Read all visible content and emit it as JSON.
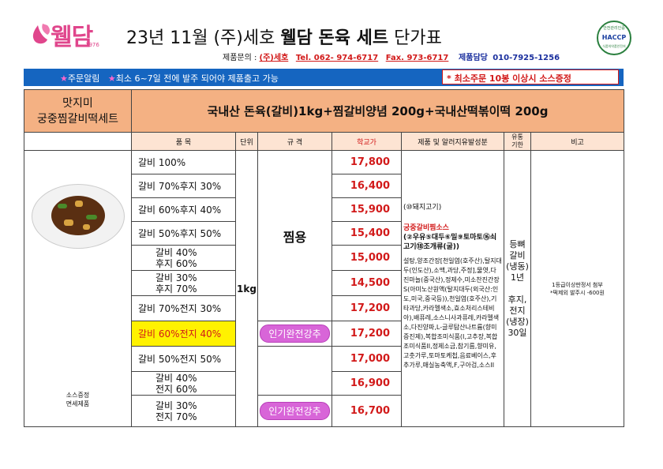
{
  "header": {
    "logo_text": "웰담",
    "logo_sub": "1976",
    "title_prefix": "23년 11월 (주)세호 ",
    "title_bold": "웰담 돈육 세트",
    "title_suffix": " 단가표",
    "contact_label": "제품문의 : ",
    "contact_company": "(주)세호",
    "contact_tel": "Tel. 062- 974-6717",
    "contact_fax": "Fax. 973-6717",
    "contact_manager": "제품담당",
    "contact_mobile": "010-7925-1256",
    "haccp_top": "안전관리인증",
    "haccp_label": "HACCP",
    "haccp_bot": "식품의약품안전처"
  },
  "notice": {
    "star1": "★",
    "text1": "주문알림",
    "star2": "★",
    "text2": "최소 6~7일 전에 발주 되어야 제품출고 가능",
    "right": "* 최소주문 10봉 이상시 소스증정"
  },
  "table": {
    "set_name_line1": "맛지미",
    "set_name_line2": "궁중찜갈비떡세트",
    "composition": "국내산 돈육(갈비)1kg+찜갈비양념 200g+국내산떡볶이떡 200g",
    "headers": {
      "item": "품   목",
      "unit": "단위",
      "spec": "규   격",
      "price": "학교가",
      "ingredients": "제품 및 알러지유발성분",
      "shelf": "유통\n기한",
      "note": "비고"
    },
    "rows": [
      {
        "l1": "갈비 100%",
        "l2": "",
        "price": "17,800",
        "badge": "",
        "highlight": false
      },
      {
        "l1": "갈비 70%후지 30%",
        "l2": "",
        "price": "16,400",
        "badge": "",
        "highlight": false
      },
      {
        "l1": "갈비 60%후지 40%",
        "l2": "",
        "price": "15,900",
        "badge": "",
        "highlight": false
      },
      {
        "l1": "갈비 50%후지 50%",
        "l2": "",
        "price": "15,400",
        "badge": "",
        "highlight": false
      },
      {
        "l1": "갈비 40%",
        "l2": "후지 60%",
        "price": "15,000",
        "badge": "",
        "highlight": false
      },
      {
        "l1": "갈비 30%",
        "l2": "후지 70%",
        "price": "14,500",
        "badge": "",
        "highlight": false
      },
      {
        "l1": "갈비 70%전지 30%",
        "l2": "",
        "price": "17,200",
        "badge": "",
        "highlight": false
      },
      {
        "l1": "갈비 60%전지 40%",
        "l2": "",
        "price": "17,200",
        "badge": "인기완전강추",
        "highlight": true
      },
      {
        "l1": "갈비 50%전지 50%",
        "l2": "",
        "price": "17,000",
        "badge": "",
        "highlight": false
      },
      {
        "l1": "갈비 40%",
        "l2": "전지 60%",
        "price": "16,900",
        "badge": "",
        "highlight": false
      },
      {
        "l1": "갈비 30%",
        "l2": "전지 70%",
        "price": "16,700",
        "badge": "인기완전강추",
        "highlight": false
      }
    ],
    "unit": "1kg",
    "spec": "찜용",
    "ingredients": {
      "pork": "(⑩돼지고기)",
      "sauce_title": "궁중갈비찜소스",
      "allergens": "(②우유⑤대두⑥밀⑨토마토⑯쇠고기⑱조개류(굴))",
      "list": "설탕,양조간장[천일염(호주산),탈지대두(인도산),소맥,과당,주정],물엿,다진마늘(중국산),정제수,미소찬진간장S(아미노산원액(탈지대두(외국산:인도,미국,중국등)),천일염(호주산),기타과당,카라멜색소,효소처리스테비아),배퓨레,소스니사과퓨레,카라멜색소,다진양파,L-글루탐산나트륨(향미증진제),복합조미식품(I,고추장,복합조미식품II,정제소금,참기름,향미유,고춧가루,토마토케첩,음료베이스,후추가루,매실농축액,F,구아검,소스II"
    },
    "shelf": {
      "l1": "등뼈",
      "l2": "갈비",
      "l3": "(냉동)",
      "l4": "1년",
      "l5": "후지,",
      "l6": "전지",
      "l7": "(냉장)",
      "l8": "30일"
    },
    "note_l1": "1등급이상판정서 첨부",
    "note_l2": "*떡제외 발주시 -600원",
    "photo_caption_l1": "소스증정",
    "photo_caption_l2": "면세제품"
  },
  "colors": {
    "brand_pink": "#e0468c",
    "notice_blue": "#1565c0",
    "header_peach": "#f4b183",
    "price_red": "#d21a1a",
    "highlight_yellow": "#fff200",
    "badge_purple": "#d865d8"
  }
}
